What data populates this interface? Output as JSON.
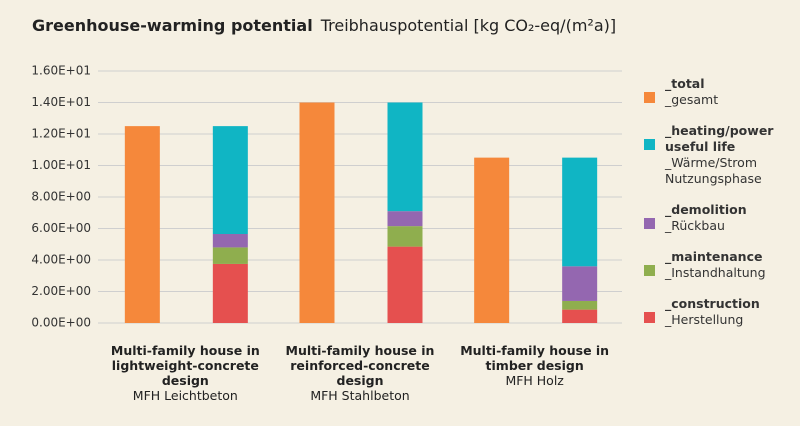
{
  "chart_data": {
    "type": "bar",
    "title": "Greenhouse-warming potential",
    "subtitle": "Treibhauspotential [kg CO₂-eq/(m²a)]",
    "categories": [
      "Multi-family house in lightweight-concrete design",
      "Multi-family house in reinforced-concrete design",
      "Multi-family house in timber design"
    ],
    "category_subtitles": [
      "MFH Leichtbeton",
      "MFH Stahlbeton",
      "MFH Holz"
    ],
    "series": [
      {
        "name": "_total",
        "subname": "_gesamt",
        "color": "#f5883b",
        "stacked": false,
        "values": [
          12.5,
          14.0,
          10.5
        ]
      },
      {
        "name": "_construction",
        "subname": "_Herstellung",
        "color": "#e5504f",
        "stacked": true,
        "values": [
          3.75,
          4.85,
          0.85
        ]
      },
      {
        "name": "_maintenance",
        "subname": "_Instandhaltung",
        "color": "#8fae4e",
        "stacked": true,
        "values": [
          1.05,
          1.3,
          0.55
        ]
      },
      {
        "name": "_demolition",
        "subname": "_Rückbau",
        "color": "#9467b0",
        "stacked": true,
        "values": [
          0.85,
          0.95,
          2.2
        ]
      },
      {
        "name": "_heating/power useful life",
        "subname": "_Wärme/Strom Nutzungsphase",
        "color": "#10b5c4",
        "stacked": true,
        "values": [
          6.85,
          6.9,
          6.9
        ]
      }
    ],
    "ylim": [
      0,
      16
    ],
    "yticks": [
      {
        "value": 0,
        "label": "0.00E+00"
      },
      {
        "value": 2,
        "label": "2.00E+00"
      },
      {
        "value": 4,
        "label": "4.00E+00"
      },
      {
        "value": 6,
        "label": "6.00E+00"
      },
      {
        "value": 8,
        "label": "8.00E+00"
      },
      {
        "value": 10,
        "label": "1.00E+01"
      },
      {
        "value": 12,
        "label": "1.20E+01"
      },
      {
        "value": 14,
        "label": "1.40E+01"
      },
      {
        "value": 16,
        "label": "1.60E+01"
      }
    ],
    "grid": true
  }
}
